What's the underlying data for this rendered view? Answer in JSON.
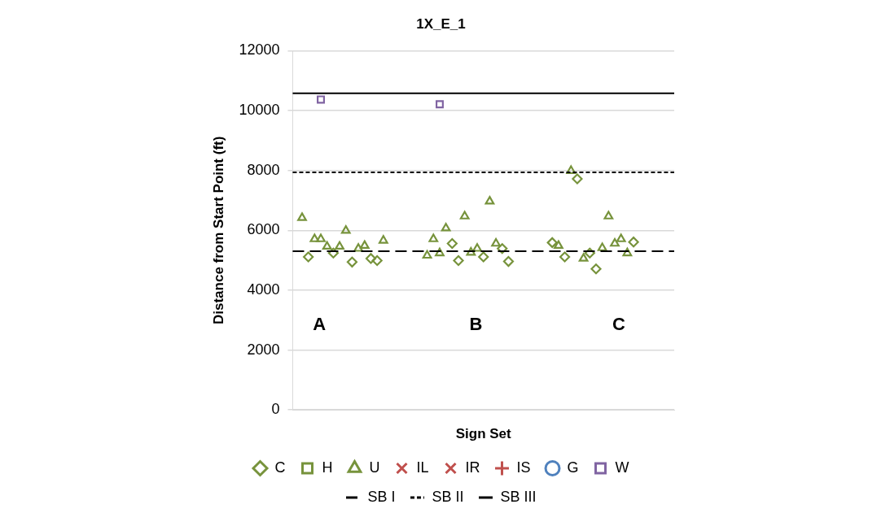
{
  "chart_data": {
    "type": "scatter",
    "title": "1X_E_1",
    "xlabel": "Sign Set",
    "ylabel": "Distance from Start Point (ft)",
    "ylim": [
      0,
      12000
    ],
    "yticks": [
      0,
      2000,
      4000,
      6000,
      8000,
      10000,
      12000
    ],
    "grid": "y",
    "legend": "bottom",
    "categories": [
      null,
      null,
      null,
      null,
      null,
      null,
      null,
      null,
      null,
      null,
      null,
      null,
      null,
      null,
      null,
      null,
      null,
      null,
      null,
      null,
      null,
      null,
      null,
      null,
      null,
      null,
      null,
      null,
      null,
      null,
      null,
      null,
      null,
      null,
      null,
      null,
      null,
      null,
      null,
      null,
      null,
      null,
      null,
      null,
      null,
      null,
      null,
      null,
      null,
      null,
      null,
      null,
      null,
      null,
      null,
      null,
      null,
      null,
      null,
      null,
      null
    ],
    "series": [
      {
        "name": "C",
        "color": "#77933c",
        "marker": "diamond",
        "values": [
          null,
          null,
          5110,
          null,
          null,
          null,
          5240,
          null,
          null,
          4940,
          null,
          null,
          5060,
          4990,
          null,
          null,
          null,
          null,
          null,
          null,
          null,
          null,
          null,
          null,
          null,
          5560,
          4990,
          null,
          null,
          null,
          5110,
          null,
          null,
          5390,
          4960,
          null,
          null,
          null,
          null,
          null,
          null,
          5590,
          null,
          5110,
          null,
          7720,
          null,
          5240,
          4710,
          null,
          null,
          null,
          null,
          null,
          5610,
          null,
          null,
          null,
          null,
          null,
          null
        ]
      },
      {
        "name": "H",
        "color": "#77933c",
        "marker": "square",
        "values": [
          null,
          null,
          null,
          null,
          null,
          null,
          null,
          null,
          null,
          null,
          null,
          null,
          null,
          null,
          null,
          null,
          null,
          null,
          null,
          null,
          null,
          null,
          null,
          null,
          null,
          null,
          null,
          null,
          null,
          null,
          null,
          null,
          null,
          null,
          null,
          null,
          null,
          null,
          null,
          null,
          null,
          null,
          null,
          null,
          null,
          null,
          null,
          null,
          null,
          null,
          null,
          null,
          null,
          null,
          null,
          null,
          null,
          null,
          null,
          null,
          null
        ]
      },
      {
        "name": "U",
        "color": "#77933c",
        "marker": "triangle",
        "values": [
          null,
          6420,
          null,
          5710,
          5710,
          5460,
          null,
          5460,
          5990,
          null,
          5390,
          5490,
          null,
          null,
          5660,
          null,
          null,
          null,
          null,
          null,
          null,
          5160,
          5710,
          5240,
          6070,
          null,
          null,
          6470,
          5260,
          5390,
          null,
          6970,
          5560,
          null,
          null,
          null,
          null,
          null,
          null,
          null,
          null,
          null,
          5490,
          null,
          7990,
          null,
          5060,
          null,
          null,
          5410,
          6470,
          5560,
          5710,
          5240,
          null,
          null,
          null,
          null,
          null,
          null,
          null
        ]
      },
      {
        "name": "IL",
        "color": "#c0504d",
        "marker": "cross",
        "values": [
          null,
          null,
          null,
          null,
          null,
          null,
          null,
          null,
          null,
          null,
          null,
          null,
          null,
          null,
          null,
          null,
          null,
          null,
          null,
          null,
          null,
          null,
          null,
          null,
          null,
          null,
          null,
          null,
          null,
          null,
          null,
          null,
          null,
          null,
          null,
          null,
          null,
          null,
          null,
          null,
          null,
          null,
          null,
          null,
          null,
          null,
          null,
          null,
          null,
          null,
          null,
          null,
          null,
          null,
          null,
          null,
          null,
          null,
          null,
          null,
          null
        ]
      },
      {
        "name": "IR",
        "color": "#c0504d",
        "marker": "cross",
        "values": [
          null,
          null,
          null,
          null,
          null,
          null,
          null,
          null,
          null,
          null,
          null,
          null,
          null,
          null,
          null,
          null,
          null,
          null,
          null,
          null,
          null,
          null,
          null,
          null,
          null,
          null,
          null,
          null,
          null,
          null,
          null,
          null,
          null,
          null,
          null,
          null,
          null,
          null,
          null,
          null,
          null,
          null,
          null,
          null,
          null,
          null,
          null,
          null,
          null,
          null,
          null,
          null,
          null,
          null,
          null,
          null,
          null,
          null,
          null,
          null,
          null
        ]
      },
      {
        "name": "IS",
        "color": "#c0504d",
        "marker": "plus",
        "values": [
          null,
          null,
          null,
          null,
          null,
          null,
          null,
          null,
          null,
          null,
          null,
          null,
          null,
          null,
          null,
          null,
          null,
          null,
          null,
          null,
          null,
          null,
          null,
          null,
          null,
          null,
          null,
          null,
          null,
          null,
          null,
          null,
          null,
          null,
          null,
          null,
          null,
          null,
          null,
          null,
          null,
          null,
          null,
          null,
          null,
          null,
          null,
          null,
          null,
          null,
          null,
          null,
          null,
          null,
          null,
          null,
          null,
          null,
          null,
          null,
          null
        ]
      },
      {
        "name": "G",
        "color": "#4f81bd",
        "marker": "circle",
        "values": [
          null,
          null,
          null,
          null,
          null,
          null,
          null,
          null,
          null,
          null,
          null,
          null,
          null,
          null,
          null,
          null,
          null,
          null,
          null,
          null,
          null,
          null,
          null,
          null,
          null,
          null,
          null,
          null,
          null,
          null,
          null,
          null,
          null,
          null,
          null,
          null,
          null,
          null,
          null,
          null,
          null,
          null,
          null,
          null,
          null,
          null,
          null,
          null,
          null,
          null,
          null,
          null,
          null,
          null,
          null,
          null,
          null,
          null,
          null,
          null,
          null
        ]
      },
      {
        "name": "W",
        "color": "#8064a2",
        "marker": "square",
        "values": [
          null,
          null,
          null,
          null,
          10370,
          null,
          null,
          null,
          null,
          null,
          null,
          null,
          null,
          null,
          null,
          null,
          null,
          null,
          null,
          null,
          null,
          null,
          null,
          10210,
          null,
          null,
          null,
          null,
          null,
          null,
          null,
          null,
          null,
          null,
          null,
          null,
          null,
          null,
          null,
          null,
          null,
          null,
          null,
          null,
          null,
          null,
          null,
          null,
          null,
          null,
          null,
          null,
          null,
          null,
          null,
          null,
          null,
          null,
          null,
          null,
          null
        ]
      }
    ],
    "ref_lines": [
      {
        "axis": "y",
        "value": 5300,
        "label": "SB I",
        "color": "#000000",
        "line_style": "dashed"
      },
      {
        "axis": "y",
        "value": 7940,
        "label": "SB II",
        "color": "#000000",
        "line_style": "dotted"
      },
      {
        "axis": "y",
        "value": 10580,
        "label": "SB III",
        "color": "#000000",
        "line_style": "solid"
      }
    ],
    "annotations": [
      "A",
      "B",
      "C"
    ]
  }
}
